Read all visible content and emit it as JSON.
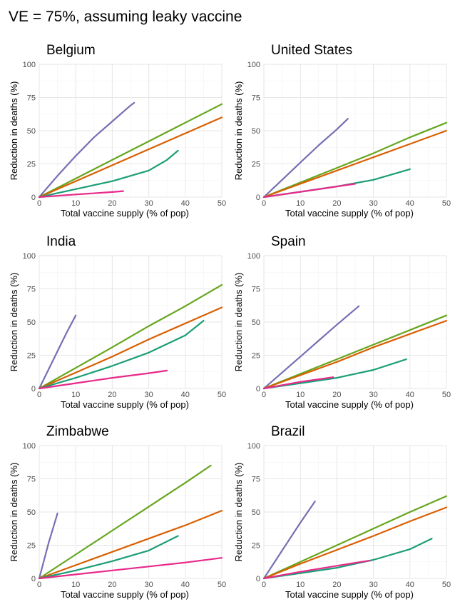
{
  "title": "VE = 75%, assuming leaky vaccine",
  "xlabel": "Total vaccine supply (% of pop)",
  "ylabel": "Reduction in deaths (%)",
  "chart_data": [
    {
      "type": "line",
      "title": "Belgium",
      "xlim": [
        0,
        50
      ],
      "ylim": [
        0,
        100
      ],
      "xticks": [
        0,
        10,
        20,
        30,
        40,
        50
      ],
      "yticks": [
        0,
        25,
        50,
        75,
        100
      ],
      "grid": true,
      "series": [
        {
          "color": "#7570b3",
          "x": [
            0,
            5,
            10,
            15,
            20,
            25,
            26
          ],
          "y": [
            0,
            16,
            31,
            45,
            57,
            69,
            71
          ]
        },
        {
          "color": "#66a61e",
          "x": [
            0,
            10,
            20,
            30,
            40,
            50
          ],
          "y": [
            0,
            14,
            28,
            42,
            56,
            70
          ]
        },
        {
          "color": "#d95f02",
          "x": [
            0,
            10,
            20,
            30,
            40,
            50
          ],
          "y": [
            0,
            12,
            24,
            36,
            48,
            60
          ]
        },
        {
          "color": "#1b9e77",
          "x": [
            0,
            10,
            20,
            30,
            35,
            38
          ],
          "y": [
            0,
            6,
            12,
            20,
            28,
            35
          ]
        },
        {
          "color": "#e7298a",
          "x": [
            0,
            10,
            20,
            23
          ],
          "y": [
            0,
            2,
            3.8,
            4.5
          ]
        }
      ]
    },
    {
      "type": "line",
      "title": "United States",
      "xlim": [
        0,
        50
      ],
      "ylim": [
        0,
        100
      ],
      "xticks": [
        0,
        10,
        20,
        30,
        40,
        50
      ],
      "yticks": [
        0,
        25,
        50,
        75,
        100
      ],
      "grid": true,
      "series": [
        {
          "color": "#7570b3",
          "x": [
            0,
            5,
            10,
            15,
            20,
            23
          ],
          "y": [
            0,
            13,
            26,
            39,
            51,
            59
          ]
        },
        {
          "color": "#66a61e",
          "x": [
            0,
            10,
            20,
            30,
            40,
            50
          ],
          "y": [
            0,
            11,
            22,
            33,
            45,
            56
          ]
        },
        {
          "color": "#d95f02",
          "x": [
            0,
            10,
            20,
            30,
            40,
            50
          ],
          "y": [
            0,
            10,
            20,
            30,
            40,
            50
          ]
        },
        {
          "color": "#1b9e77",
          "x": [
            0,
            10,
            20,
            30,
            40
          ],
          "y": [
            0,
            4,
            8,
            13,
            21
          ]
        },
        {
          "color": "#e7298a",
          "x": [
            0,
            10,
            20,
            25
          ],
          "y": [
            0,
            4,
            8,
            10
          ]
        }
      ]
    },
    {
      "type": "line",
      "title": "India",
      "xlim": [
        0,
        50
      ],
      "ylim": [
        0,
        100
      ],
      "xticks": [
        0,
        10,
        20,
        30,
        40,
        50
      ],
      "yticks": [
        0,
        25,
        50,
        75,
        100
      ],
      "grid": true,
      "series": [
        {
          "color": "#7570b3",
          "x": [
            0,
            2.5,
            5,
            7.5,
            10
          ],
          "y": [
            0,
            14,
            28,
            42,
            55
          ]
        },
        {
          "color": "#66a61e",
          "x": [
            0,
            10,
            20,
            30,
            40,
            50
          ],
          "y": [
            0,
            15.5,
            31,
            47,
            62,
            78
          ]
        },
        {
          "color": "#d95f02",
          "x": [
            0,
            10,
            20,
            30,
            40,
            50
          ],
          "y": [
            0,
            12,
            24,
            37,
            49,
            61
          ]
        },
        {
          "color": "#1b9e77",
          "x": [
            0,
            10,
            20,
            30,
            40,
            45
          ],
          "y": [
            0,
            8,
            17,
            27,
            40,
            51
          ]
        },
        {
          "color": "#e7298a",
          "x": [
            0,
            10,
            20,
            30,
            35
          ],
          "y": [
            0,
            4,
            8,
            11.5,
            13.5
          ]
        }
      ]
    },
    {
      "type": "line",
      "title": "Spain",
      "xlim": [
        0,
        50
      ],
      "ylim": [
        0,
        100
      ],
      "xticks": [
        0,
        10,
        20,
        30,
        40,
        50
      ],
      "yticks": [
        0,
        25,
        50,
        75,
        100
      ],
      "grid": true,
      "series": [
        {
          "color": "#7570b3",
          "x": [
            0,
            5,
            10,
            15,
            20,
            26
          ],
          "y": [
            0,
            12,
            24,
            36,
            48,
            62
          ]
        },
        {
          "color": "#66a61e",
          "x": [
            0,
            10,
            20,
            30,
            40,
            50
          ],
          "y": [
            0,
            11,
            22,
            33,
            44,
            55
          ]
        },
        {
          "color": "#d95f02",
          "x": [
            0,
            10,
            20,
            30,
            40,
            50
          ],
          "y": [
            0,
            10,
            20,
            31,
            41,
            51
          ]
        },
        {
          "color": "#1b9e77",
          "x": [
            0,
            10,
            20,
            30,
            39
          ],
          "y": [
            0,
            4,
            8,
            14,
            22
          ]
        },
        {
          "color": "#e7298a",
          "x": [
            0,
            10,
            19
          ],
          "y": [
            0,
            5,
            8.5
          ]
        }
      ]
    },
    {
      "type": "line",
      "title": "Zimbabwe",
      "xlim": [
        0,
        50
      ],
      "ylim": [
        0,
        100
      ],
      "xticks": [
        0,
        10,
        20,
        30,
        40,
        50
      ],
      "yticks": [
        0,
        25,
        50,
        75,
        100
      ],
      "grid": true,
      "series": [
        {
          "color": "#7570b3",
          "x": [
            0,
            2.5,
            5
          ],
          "y": [
            0,
            26,
            49
          ]
        },
        {
          "color": "#66a61e",
          "x": [
            0,
            10,
            20,
            30,
            40,
            47
          ],
          "y": [
            0,
            18,
            36,
            54,
            72,
            85
          ]
        },
        {
          "color": "#d95f02",
          "x": [
            0,
            10,
            20,
            30,
            40,
            50
          ],
          "y": [
            0,
            10,
            20,
            30,
            40,
            51
          ]
        },
        {
          "color": "#1b9e77",
          "x": [
            0,
            10,
            20,
            30,
            38
          ],
          "y": [
            0,
            6,
            13,
            21,
            32
          ]
        },
        {
          "color": "#e7298a",
          "x": [
            0,
            10,
            20,
            30,
            40,
            50
          ],
          "y": [
            0,
            3,
            6,
            9,
            12,
            15.5
          ]
        }
      ]
    },
    {
      "type": "line",
      "title": "Brazil",
      "xlim": [
        0,
        50
      ],
      "ylim": [
        0,
        100
      ],
      "xticks": [
        0,
        10,
        20,
        30,
        40,
        50
      ],
      "yticks": [
        0,
        25,
        50,
        75,
        100
      ],
      "grid": true,
      "series": [
        {
          "color": "#7570b3",
          "x": [
            0,
            5,
            10,
            14
          ],
          "y": [
            0,
            21,
            42,
            58
          ]
        },
        {
          "color": "#66a61e",
          "x": [
            0,
            10,
            20,
            30,
            40,
            50
          ],
          "y": [
            0,
            12.5,
            25,
            37.5,
            50,
            62
          ]
        },
        {
          "color": "#d95f02",
          "x": [
            0,
            10,
            20,
            30,
            40,
            50
          ],
          "y": [
            0,
            11,
            21.5,
            32,
            43,
            53.5
          ]
        },
        {
          "color": "#1b9e77",
          "x": [
            0,
            10,
            20,
            30,
            40,
            46
          ],
          "y": [
            0,
            4,
            8,
            14,
            22,
            30
          ]
        },
        {
          "color": "#e7298a",
          "x": [
            0,
            10,
            20,
            29
          ],
          "y": [
            0,
            5,
            9.5,
            13.5
          ]
        }
      ]
    }
  ]
}
